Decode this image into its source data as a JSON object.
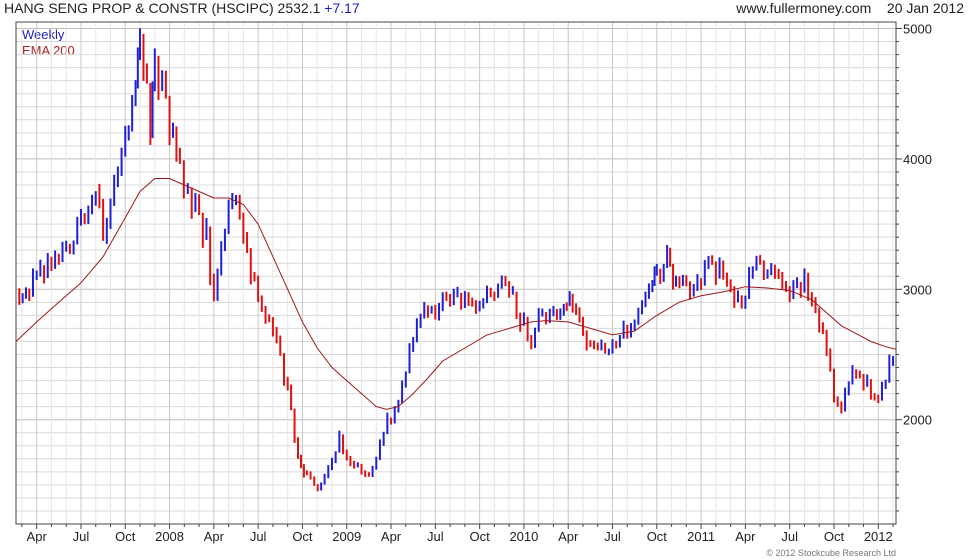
{
  "header": {
    "title": "HANG SENG PROP & CONSTR (HSCIPC) 2532.1",
    "change": "+7.17",
    "source": "www.fullermoney.com",
    "date": "20 Jan 2012"
  },
  "legend": {
    "weekly": "Weekly",
    "ema": "EMA 200"
  },
  "copyright": "© 2012 Stockcube Research Ltd",
  "colors": {
    "up": "#1f1fd6",
    "down": "#e01010",
    "ema": "#a01818",
    "grid": "#d9d9d9",
    "axis": "#444444"
  },
  "chart_data": {
    "type": "line",
    "x_unit": "months since Jan 2007",
    "xlim": [
      1.6,
      61.2
    ],
    "ylim": [
      1200,
      5050
    ],
    "ylabel_side": "right",
    "grid": true,
    "y_ticks": [
      2000,
      3000,
      4000,
      5000
    ],
    "x_ticks": [
      {
        "label": "Apr",
        "x": 3
      },
      {
        "label": "Jul",
        "x": 6
      },
      {
        "label": "Oct",
        "x": 9
      },
      {
        "label": "2008",
        "x": 12
      },
      {
        "label": "Apr",
        "x": 15
      },
      {
        "label": "Jul",
        "x": 18
      },
      {
        "label": "Oct",
        "x": 21
      },
      {
        "label": "2009",
        "x": 24
      },
      {
        "label": "Apr",
        "x": 27
      },
      {
        "label": "Jul",
        "x": 30
      },
      {
        "label": "Oct",
        "x": 33
      },
      {
        "label": "2010",
        "x": 36
      },
      {
        "label": "Apr",
        "x": 39
      },
      {
        "label": "Jul",
        "x": 42
      },
      {
        "label": "Oct",
        "x": 45
      },
      {
        "label": "2011",
        "x": 48
      },
      {
        "label": "Apr",
        "x": 51
      },
      {
        "label": "Jul",
        "x": 54
      },
      {
        "label": "Oct",
        "x": 57
      },
      {
        "label": "2012",
        "x": 60
      }
    ],
    "series": [
      {
        "name": "Weekly",
        "style": "price bars",
        "points": [
          [
            1.6,
            3000
          ],
          [
            2.5,
            2950
          ],
          [
            3.0,
            3100
          ],
          [
            4.0,
            3200
          ],
          [
            5.0,
            3350
          ],
          [
            6.0,
            3550
          ],
          [
            7.0,
            3800
          ],
          [
            7.5,
            3300
          ],
          [
            8.0,
            3700
          ],
          [
            9.0,
            4200
          ],
          [
            9.7,
            4500
          ],
          [
            10.0,
            4800
          ],
          [
            10.7,
            4300
          ],
          [
            11.0,
            4700
          ],
          [
            12.0,
            4250
          ],
          [
            12.7,
            3900
          ],
          [
            13.5,
            3650
          ],
          [
            14.5,
            3400
          ],
          [
            15.0,
            2950
          ],
          [
            15.5,
            3300
          ],
          [
            16.0,
            3550
          ],
          [
            16.5,
            3650
          ],
          [
            17.0,
            3400
          ],
          [
            17.5,
            3100
          ],
          [
            18.0,
            2900
          ],
          [
            19.0,
            2700
          ],
          [
            20.0,
            2200
          ],
          [
            20.7,
            1750
          ],
          [
            21.3,
            1550
          ],
          [
            21.8,
            1500
          ],
          [
            22.5,
            1550
          ],
          [
            23.0,
            1700
          ],
          [
            23.5,
            1850
          ],
          [
            24.0,
            1750
          ],
          [
            24.5,
            1650
          ],
          [
            25.5,
            1580
          ],
          [
            26.0,
            1700
          ],
          [
            26.5,
            1900
          ],
          [
            27.0,
            2050
          ],
          [
            27.5,
            2200
          ],
          [
            28.0,
            2400
          ],
          [
            28.5,
            2600
          ],
          [
            29.0,
            2800
          ],
          [
            29.5,
            2850
          ],
          [
            30.0,
            2700
          ],
          [
            30.5,
            2900
          ],
          [
            31.0,
            2850
          ],
          [
            32.0,
            3000
          ],
          [
            33.0,
            2900
          ],
          [
            34.0,
            3000
          ],
          [
            35.0,
            2950
          ],
          [
            35.5,
            2850
          ],
          [
            36.0,
            2700
          ],
          [
            36.5,
            2600
          ],
          [
            37.0,
            2750
          ],
          [
            38.0,
            2850
          ],
          [
            38.7,
            2950
          ],
          [
            39.3,
            2850
          ],
          [
            40.0,
            2650
          ],
          [
            40.5,
            2500
          ],
          [
            41.0,
            2480
          ],
          [
            42.0,
            2600
          ],
          [
            43.0,
            2700
          ],
          [
            44.0,
            2850
          ],
          [
            44.7,
            3000
          ],
          [
            45.0,
            3100
          ],
          [
            45.7,
            3200
          ],
          [
            46.3,
            3100
          ],
          [
            47.0,
            3050
          ],
          [
            47.5,
            3000
          ],
          [
            48.0,
            3100
          ],
          [
            48.5,
            3200
          ],
          [
            49.0,
            3150
          ],
          [
            50.0,
            3050
          ],
          [
            50.5,
            2900
          ],
          [
            51.0,
            3000
          ],
          [
            51.5,
            3200
          ],
          [
            52.0,
            3150
          ],
          [
            53.0,
            3100
          ],
          [
            53.5,
            3000
          ],
          [
            54.0,
            2950
          ],
          [
            54.5,
            3000
          ],
          [
            55.0,
            3050
          ],
          [
            55.5,
            2900
          ],
          [
            56.0,
            2700
          ],
          [
            56.5,
            2500
          ],
          [
            57.0,
            2200
          ],
          [
            57.5,
            2100
          ],
          [
            58.0,
            2300
          ],
          [
            58.5,
            2400
          ],
          [
            59.0,
            2300
          ],
          [
            59.5,
            2250
          ],
          [
            60.0,
            2200
          ],
          [
            60.5,
            2300
          ],
          [
            61.0,
            2532.1
          ]
        ]
      },
      {
        "name": "EMA 200",
        "points": [
          [
            1.6,
            2600
          ],
          [
            3.0,
            2750
          ],
          [
            4.5,
            2900
          ],
          [
            6.0,
            3050
          ],
          [
            7.5,
            3250
          ],
          [
            9.0,
            3550
          ],
          [
            10.0,
            3750
          ],
          [
            11.0,
            3850
          ],
          [
            12.0,
            3850
          ],
          [
            13.0,
            3800
          ],
          [
            14.0,
            3750
          ],
          [
            15.0,
            3700
          ],
          [
            16.0,
            3700
          ],
          [
            17.0,
            3650
          ],
          [
            18.0,
            3500
          ],
          [
            19.0,
            3250
          ],
          [
            20.0,
            3000
          ],
          [
            21.0,
            2750
          ],
          [
            22.0,
            2550
          ],
          [
            23.0,
            2400
          ],
          [
            24.0,
            2300
          ],
          [
            25.0,
            2200
          ],
          [
            26.0,
            2100
          ],
          [
            26.7,
            2080
          ],
          [
            27.5,
            2100
          ],
          [
            28.5,
            2200
          ],
          [
            29.5,
            2320
          ],
          [
            30.5,
            2450
          ],
          [
            32.0,
            2550
          ],
          [
            33.5,
            2650
          ],
          [
            35.0,
            2700
          ],
          [
            36.5,
            2750
          ],
          [
            37.5,
            2760
          ],
          [
            39.0,
            2750
          ],
          [
            40.5,
            2700
          ],
          [
            42.0,
            2650
          ],
          [
            43.5,
            2680
          ],
          [
            45.0,
            2800
          ],
          [
            46.5,
            2900
          ],
          [
            48.0,
            2950
          ],
          [
            49.5,
            2980
          ],
          [
            51.0,
            3020
          ],
          [
            52.5,
            3010
          ],
          [
            54.0,
            2990
          ],
          [
            55.5,
            2920
          ],
          [
            56.5,
            2820
          ],
          [
            57.5,
            2720
          ],
          [
            58.5,
            2660
          ],
          [
            59.5,
            2600
          ],
          [
            60.5,
            2560
          ],
          [
            61.2,
            2540
          ]
        ]
      }
    ]
  }
}
